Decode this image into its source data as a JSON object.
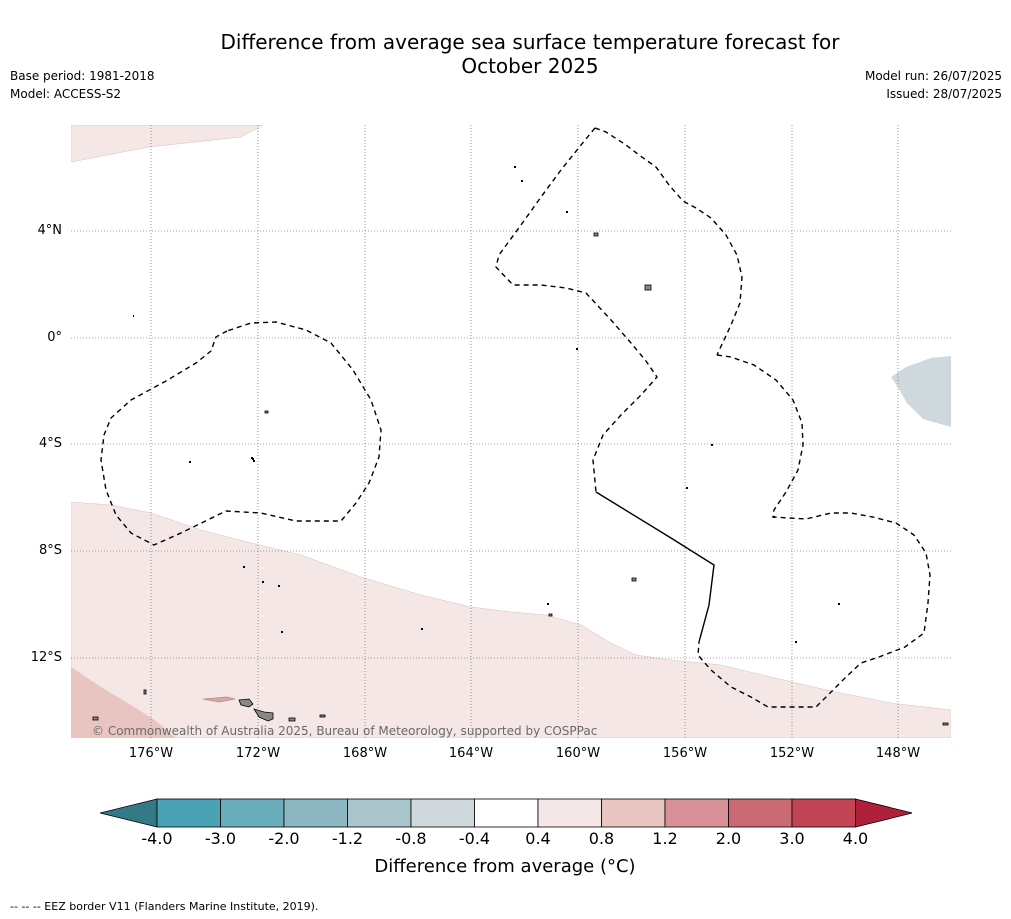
{
  "title": "Difference from average sea surface temperature forecast for October 2025",
  "title_line1": "Difference from average sea surface temperature forecast for",
  "title_line2": "October 2025",
  "meta_left": {
    "base_period": "Base period: 1981-2018",
    "model": "Model: ACCESS-S2"
  },
  "meta_right": {
    "model_run": "Model run: 26/07/2025",
    "issued": "Issued: 28/07/2025"
  },
  "map": {
    "lat_labels": [
      "4°N",
      "0°",
      "4°S",
      "8°S",
      "12°S"
    ],
    "lon_labels": [
      "176°W",
      "172°W",
      "168°W",
      "164°W",
      "160°W",
      "156°W",
      "152°W",
      "148°W"
    ],
    "copyright": "© Commonwealth of Australia 2025, Bureau of Meteorology, supported by COSPPac"
  },
  "colorbar": {
    "ticks": [
      "-4.0",
      "-3.0",
      "-2.0",
      "-1.2",
      "-0.8",
      "-0.4",
      "0.4",
      "0.8",
      "1.2",
      "2.0",
      "3.0",
      "4.0"
    ],
    "colors": [
      "#347a86",
      "#4aa3b5",
      "#6aadbc",
      "#8db7c3",
      "#a9c5cc",
      "#cfd9dd",
      "#ffffff",
      "#f5e7e6",
      "#e8c5c1",
      "#d99198",
      "#cc6a73",
      "#c14555",
      "#b0203b"
    ],
    "label": "Difference from average (°C)"
  },
  "footer": "--  --  -- EEZ border V11 (Flanders Marine Institute, 2019)."
}
